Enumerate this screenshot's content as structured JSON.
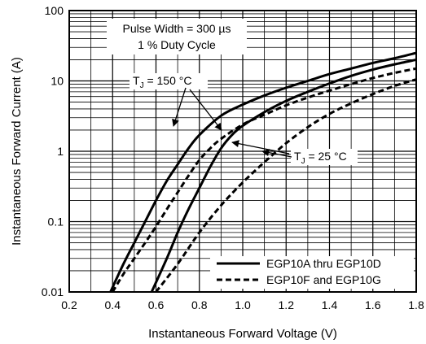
{
  "chart_data": {
    "type": "line",
    "title": "",
    "xlabel": "Instantaneous Forward Voltage (V)",
    "ylabel": "Instantaneous Forward Current (A)",
    "xlim": [
      0.2,
      1.8
    ],
    "ylim": [
      0.01,
      100
    ],
    "y_scale": "log",
    "x_ticks": [
      "0.2",
      "0.4",
      "0.6",
      "0.8",
      "1.0",
      "1.2",
      "1.4",
      "1.6",
      "1.8"
    ],
    "y_ticks": [
      "0.01",
      "0.1",
      "1",
      "10",
      "100"
    ],
    "grid": true,
    "legend_position": "bottom-right",
    "series": [
      {
        "name": "EGP10A thru EGP10D",
        "condition": "TJ = 150 °C",
        "line_style": "solid",
        "x": [
          0.39,
          0.45,
          0.5,
          0.55,
          0.6,
          0.65,
          0.7,
          0.75,
          0.8,
          0.9,
          1.0,
          1.1,
          1.2,
          1.3,
          1.4,
          1.5,
          1.6,
          1.7,
          1.8
        ],
        "y": [
          0.01,
          0.025,
          0.05,
          0.1,
          0.2,
          0.38,
          0.65,
          1.1,
          1.7,
          3.2,
          4.6,
          6.2,
          8.0,
          10.0,
          12.5,
          15.0,
          18.0,
          21.0,
          25.0
        ]
      },
      {
        "name": "EGP10A thru EGP10D",
        "condition": "TJ = 25 °C",
        "line_style": "solid",
        "x": [
          0.58,
          0.65,
          0.7,
          0.75,
          0.8,
          0.85,
          0.9,
          0.95,
          1.0,
          1.1,
          1.2,
          1.3,
          1.4,
          1.5,
          1.6,
          1.7,
          1.8
        ],
        "y": [
          0.01,
          0.03,
          0.07,
          0.15,
          0.3,
          0.6,
          1.1,
          1.7,
          2.3,
          3.6,
          5.2,
          7.0,
          9.2,
          11.8,
          14.5,
          17.2,
          20.0
        ]
      },
      {
        "name": "EGP10F and EGP10G",
        "condition": "TJ = 150 °C",
        "line_style": "dashed",
        "x": [
          0.4,
          0.45,
          0.5,
          0.55,
          0.6,
          0.65,
          0.7,
          0.75,
          0.8,
          0.85,
          0.9,
          1.0,
          1.1,
          1.2,
          1.3,
          1.4,
          1.5,
          1.6,
          1.7,
          1.8
        ],
        "y": [
          0.01,
          0.018,
          0.03,
          0.05,
          0.085,
          0.15,
          0.26,
          0.45,
          0.75,
          1.1,
          1.5,
          2.4,
          3.3,
          4.5,
          5.8,
          7.3,
          9.0,
          11.0,
          13.0,
          15.0
        ]
      },
      {
        "name": "EGP10F and EGP10G",
        "condition": "TJ = 25 °C",
        "line_style": "dashed",
        "x": [
          0.6,
          0.7,
          0.8,
          0.9,
          1.0,
          1.1,
          1.2,
          1.3,
          1.4,
          1.5,
          1.6,
          1.7,
          1.8
        ],
        "y": [
          0.01,
          0.025,
          0.07,
          0.17,
          0.36,
          0.7,
          1.3,
          2.2,
          3.4,
          4.8,
          6.5,
          8.5,
          10.5
        ]
      }
    ],
    "legend": [
      {
        "label": "EGP10A thru EGP10D",
        "line_style": "solid"
      },
      {
        "label": "EGP10F and EGP10G",
        "line_style": "dashed"
      }
    ],
    "annotations": [
      {
        "id": "pulse",
        "lines": [
          "Pulse Width = 300 µs",
          "1 % Duty Cycle"
        ]
      },
      {
        "id": "tj150",
        "text_main": "T",
        "text_sub": "J",
        "text_rest": " = 150 °C"
      },
      {
        "id": "tj25",
        "text_main": "T",
        "text_sub": "J",
        "text_rest": " = 25 °C"
      }
    ]
  }
}
